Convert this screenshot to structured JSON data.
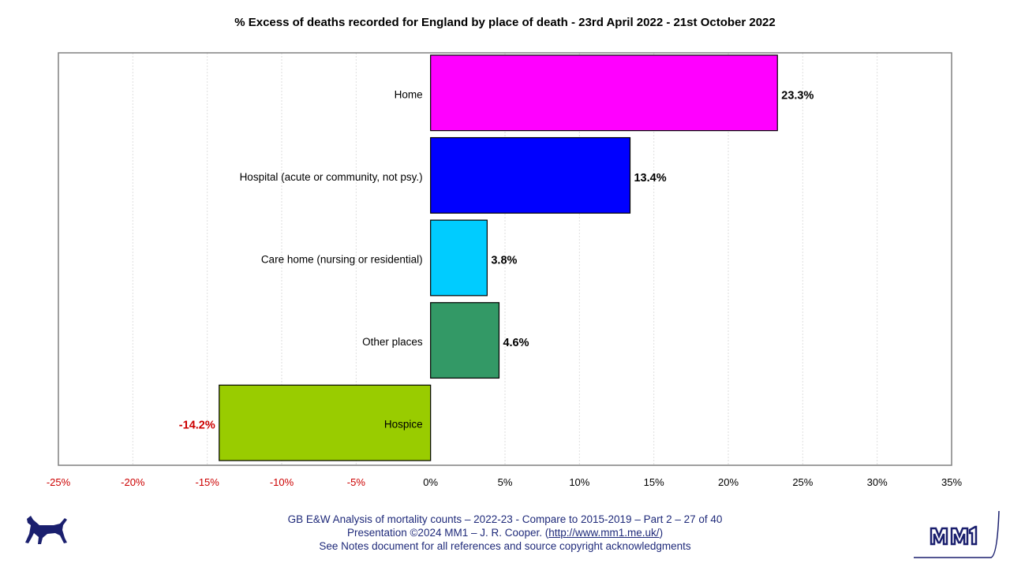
{
  "chart_data": {
    "type": "bar",
    "orientation": "horizontal",
    "title": "% Excess of deaths recorded for England by place of death - 23rd April 2022 - 21st October 2022",
    "categories": [
      "Home",
      "Hospital (acute or community, not psy.)",
      "Care home (nursing or residential)",
      "Other places",
      "Hospice"
    ],
    "values": [
      23.3,
      13.4,
      3.8,
      4.6,
      -14.2
    ],
    "data_labels": [
      "23.3%",
      "13.4%",
      "3.8%",
      "4.6%",
      "-14.2%"
    ],
    "bar_colors": [
      "#ff00ff",
      "#0000ff",
      "#00ccff",
      "#339966",
      "#99cc00"
    ],
    "xlim": [
      -25,
      35
    ],
    "x_ticks": [
      -25,
      -20,
      -15,
      -10,
      -5,
      0,
      5,
      10,
      15,
      20,
      25,
      30,
      35
    ],
    "x_tick_labels": [
      "-25%",
      "-20%",
      "-15%",
      "-10%",
      "-5%",
      "0%",
      "5%",
      "10%",
      "15%",
      "20%",
      "25%",
      "30%",
      "35%"
    ],
    "negative_color": "#cc0000",
    "positive_label_color": "#000000",
    "grid": "vertical dashed",
    "legend": "none"
  },
  "footer": {
    "line1": "GB E&W Analysis of mortality counts – 2022-23 - Compare to 2015-2019 – Part 2 – 27 of 40",
    "line2_prefix": "Presentation ©2024 MM1 – J. R. Cooper. (",
    "line2_url": "http://www.mm1.me.uk/",
    "line2_suffix": ")",
    "line3": "See Notes document for all references and source copyright acknowledgments"
  },
  "logos": {
    "left": "dog-silhouette-icon",
    "right": "MM1"
  },
  "colors": {
    "footer_text": "#1f2a7a",
    "plot_border": "#808080",
    "grid": "#d9d9d9"
  }
}
